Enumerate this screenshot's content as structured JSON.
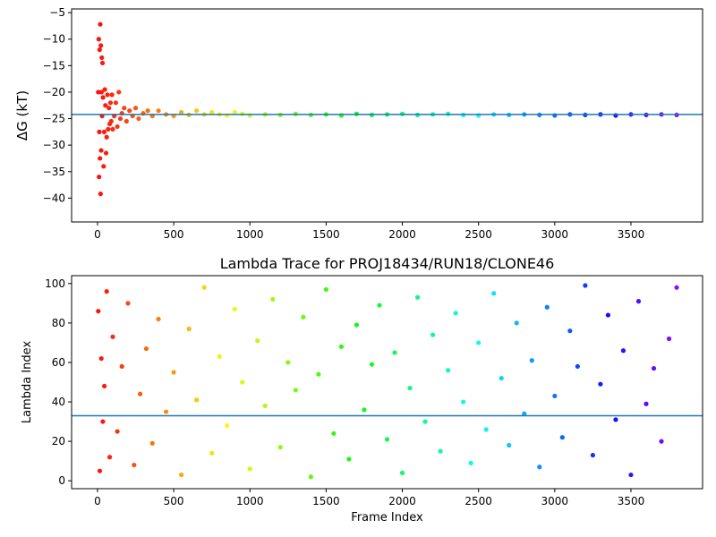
{
  "chart_data": [
    {
      "type": "scatter",
      "title": "",
      "xlabel": "",
      "ylabel": "ΔG (kT)",
      "xlim": [
        -170,
        3970
      ],
      "ylim": [
        -44.5,
        -4.3
      ],
      "xticks": [
        0,
        500,
        1000,
        1500,
        2000,
        2500,
        3000,
        3500
      ],
      "yticks": [
        -40,
        -35,
        -30,
        -25,
        -20,
        -15,
        -10,
        -5
      ],
      "hline": -24.2,
      "colormap": "rainbow (red at frame 0 → violet at last frame)",
      "hline_color": "#1f77b4",
      "series": [
        {
          "x": [
            5,
            8,
            10,
            12,
            14,
            16,
            18,
            20,
            22,
            24,
            26,
            28,
            30,
            33,
            36,
            40,
            44,
            48,
            52,
            56,
            60,
            65,
            70,
            75,
            80,
            85,
            90,
            95,
            100,
            110,
            120,
            130,
            140,
            150,
            160,
            175,
            190,
            210,
            230,
            250,
            270,
            300,
            330,
            360,
            400,
            450,
            500,
            550,
            600,
            650,
            700,
            750,
            800,
            850,
            900,
            950,
            1000,
            1100,
            1200,
            1300,
            1400,
            1500,
            1600,
            1700,
            1800,
            1900,
            2000,
            2100,
            2200,
            2300,
            2400,
            2500,
            2600,
            2700,
            2800,
            2900,
            3000,
            3100,
            3200,
            3300,
            3400,
            3500,
            3600,
            3700,
            3800
          ],
          "y": [
            -20,
            -10,
            -36,
            -27.5,
            -12,
            -32.5,
            -7.2,
            -39.2,
            -11.2,
            -31,
            -20,
            -13.5,
            -24.5,
            -14.5,
            -21,
            -34,
            -27.5,
            -19.5,
            -22.5,
            -31.5,
            -28.5,
            -20.5,
            -27,
            -23,
            -26,
            -22,
            -25.5,
            -20.5,
            -27,
            -24.5,
            -22,
            -26.5,
            -20,
            -25,
            -24,
            -23,
            -25.5,
            -23.5,
            -24.5,
            -23,
            -25,
            -24,
            -23.5,
            -24.5,
            -23.5,
            -24.2,
            -24.5,
            -23.8,
            -24.3,
            -23.5,
            -24.2,
            -23.8,
            -24.2,
            -24.4,
            -23.8,
            -24.1,
            -24.4,
            -24.2,
            -24.3,
            -24.1,
            -24.3,
            -24.2,
            -24.4,
            -24.1,
            -24.3,
            -24.2,
            -24.1,
            -24.3,
            -24.2,
            -24.1,
            -24.3,
            -24.4,
            -24.2,
            -24.3,
            -24.2,
            -24.3,
            -24.4,
            -24.2,
            -24.3,
            -24.2,
            -24.4,
            -24.2,
            -24.3,
            -24.2,
            -24.3
          ]
        }
      ]
    },
    {
      "type": "scatter",
      "title": "Lambda Trace for PROJ18434/RUN18/CLONE46",
      "xlabel": "Frame Index",
      "ylabel": "Lambda Index",
      "xlim": [
        -170,
        3970
      ],
      "ylim": [
        -4,
        104
      ],
      "xticks": [
        0,
        500,
        1000,
        1500,
        2000,
        2500,
        3000,
        3500
      ],
      "yticks": [
        0,
        20,
        40,
        60,
        80,
        100
      ],
      "hline": 33,
      "colormap": "rainbow (red at frame 0 → violet at last frame)",
      "hline_color": "#1f77b4",
      "series": [
        {
          "x": [
            5,
            15,
            25,
            35,
            45,
            60,
            80,
            100,
            130,
            160,
            200,
            240,
            280,
            320,
            360,
            400,
            450,
            500,
            550,
            600,
            650,
            700,
            750,
            800,
            850,
            900,
            950,
            1000,
            1050,
            1100,
            1150,
            1200,
            1250,
            1300,
            1350,
            1400,
            1450,
            1500,
            1550,
            1600,
            1650,
            1700,
            1750,
            1800,
            1850,
            1900,
            1950,
            2000,
            2050,
            2100,
            2150,
            2200,
            2250,
            2300,
            2350,
            2400,
            2450,
            2500,
            2550,
            2600,
            2650,
            2700,
            2750,
            2800,
            2850,
            2900,
            2950,
            3000,
            3050,
            3100,
            3150,
            3200,
            3250,
            3300,
            3350,
            3400,
            3450,
            3500,
            3550,
            3600,
            3650,
            3700,
            3750,
            3800
          ],
          "y": [
            86,
            5,
            62,
            30,
            48,
            96,
            12,
            73,
            25,
            58,
            90,
            8,
            44,
            67,
            19,
            82,
            35,
            55,
            3,
            77,
            41,
            98,
            14,
            63,
            28,
            87,
            50,
            6,
            71,
            38,
            92,
            17,
            60,
            46,
            83,
            2,
            54,
            97,
            24,
            68,
            11,
            79,
            36,
            59,
            89,
            21,
            65,
            4,
            47,
            93,
            30,
            74,
            15,
            56,
            85,
            40,
            9,
            70,
            26,
            95,
            52,
            18,
            80,
            34,
            61,
            7,
            88,
            43,
            22,
            76,
            58,
            99,
            13,
            49,
            84,
            31,
            66,
            3,
            91,
            39,
            57,
            20,
            72,
            98
          ]
        }
      ]
    }
  ]
}
